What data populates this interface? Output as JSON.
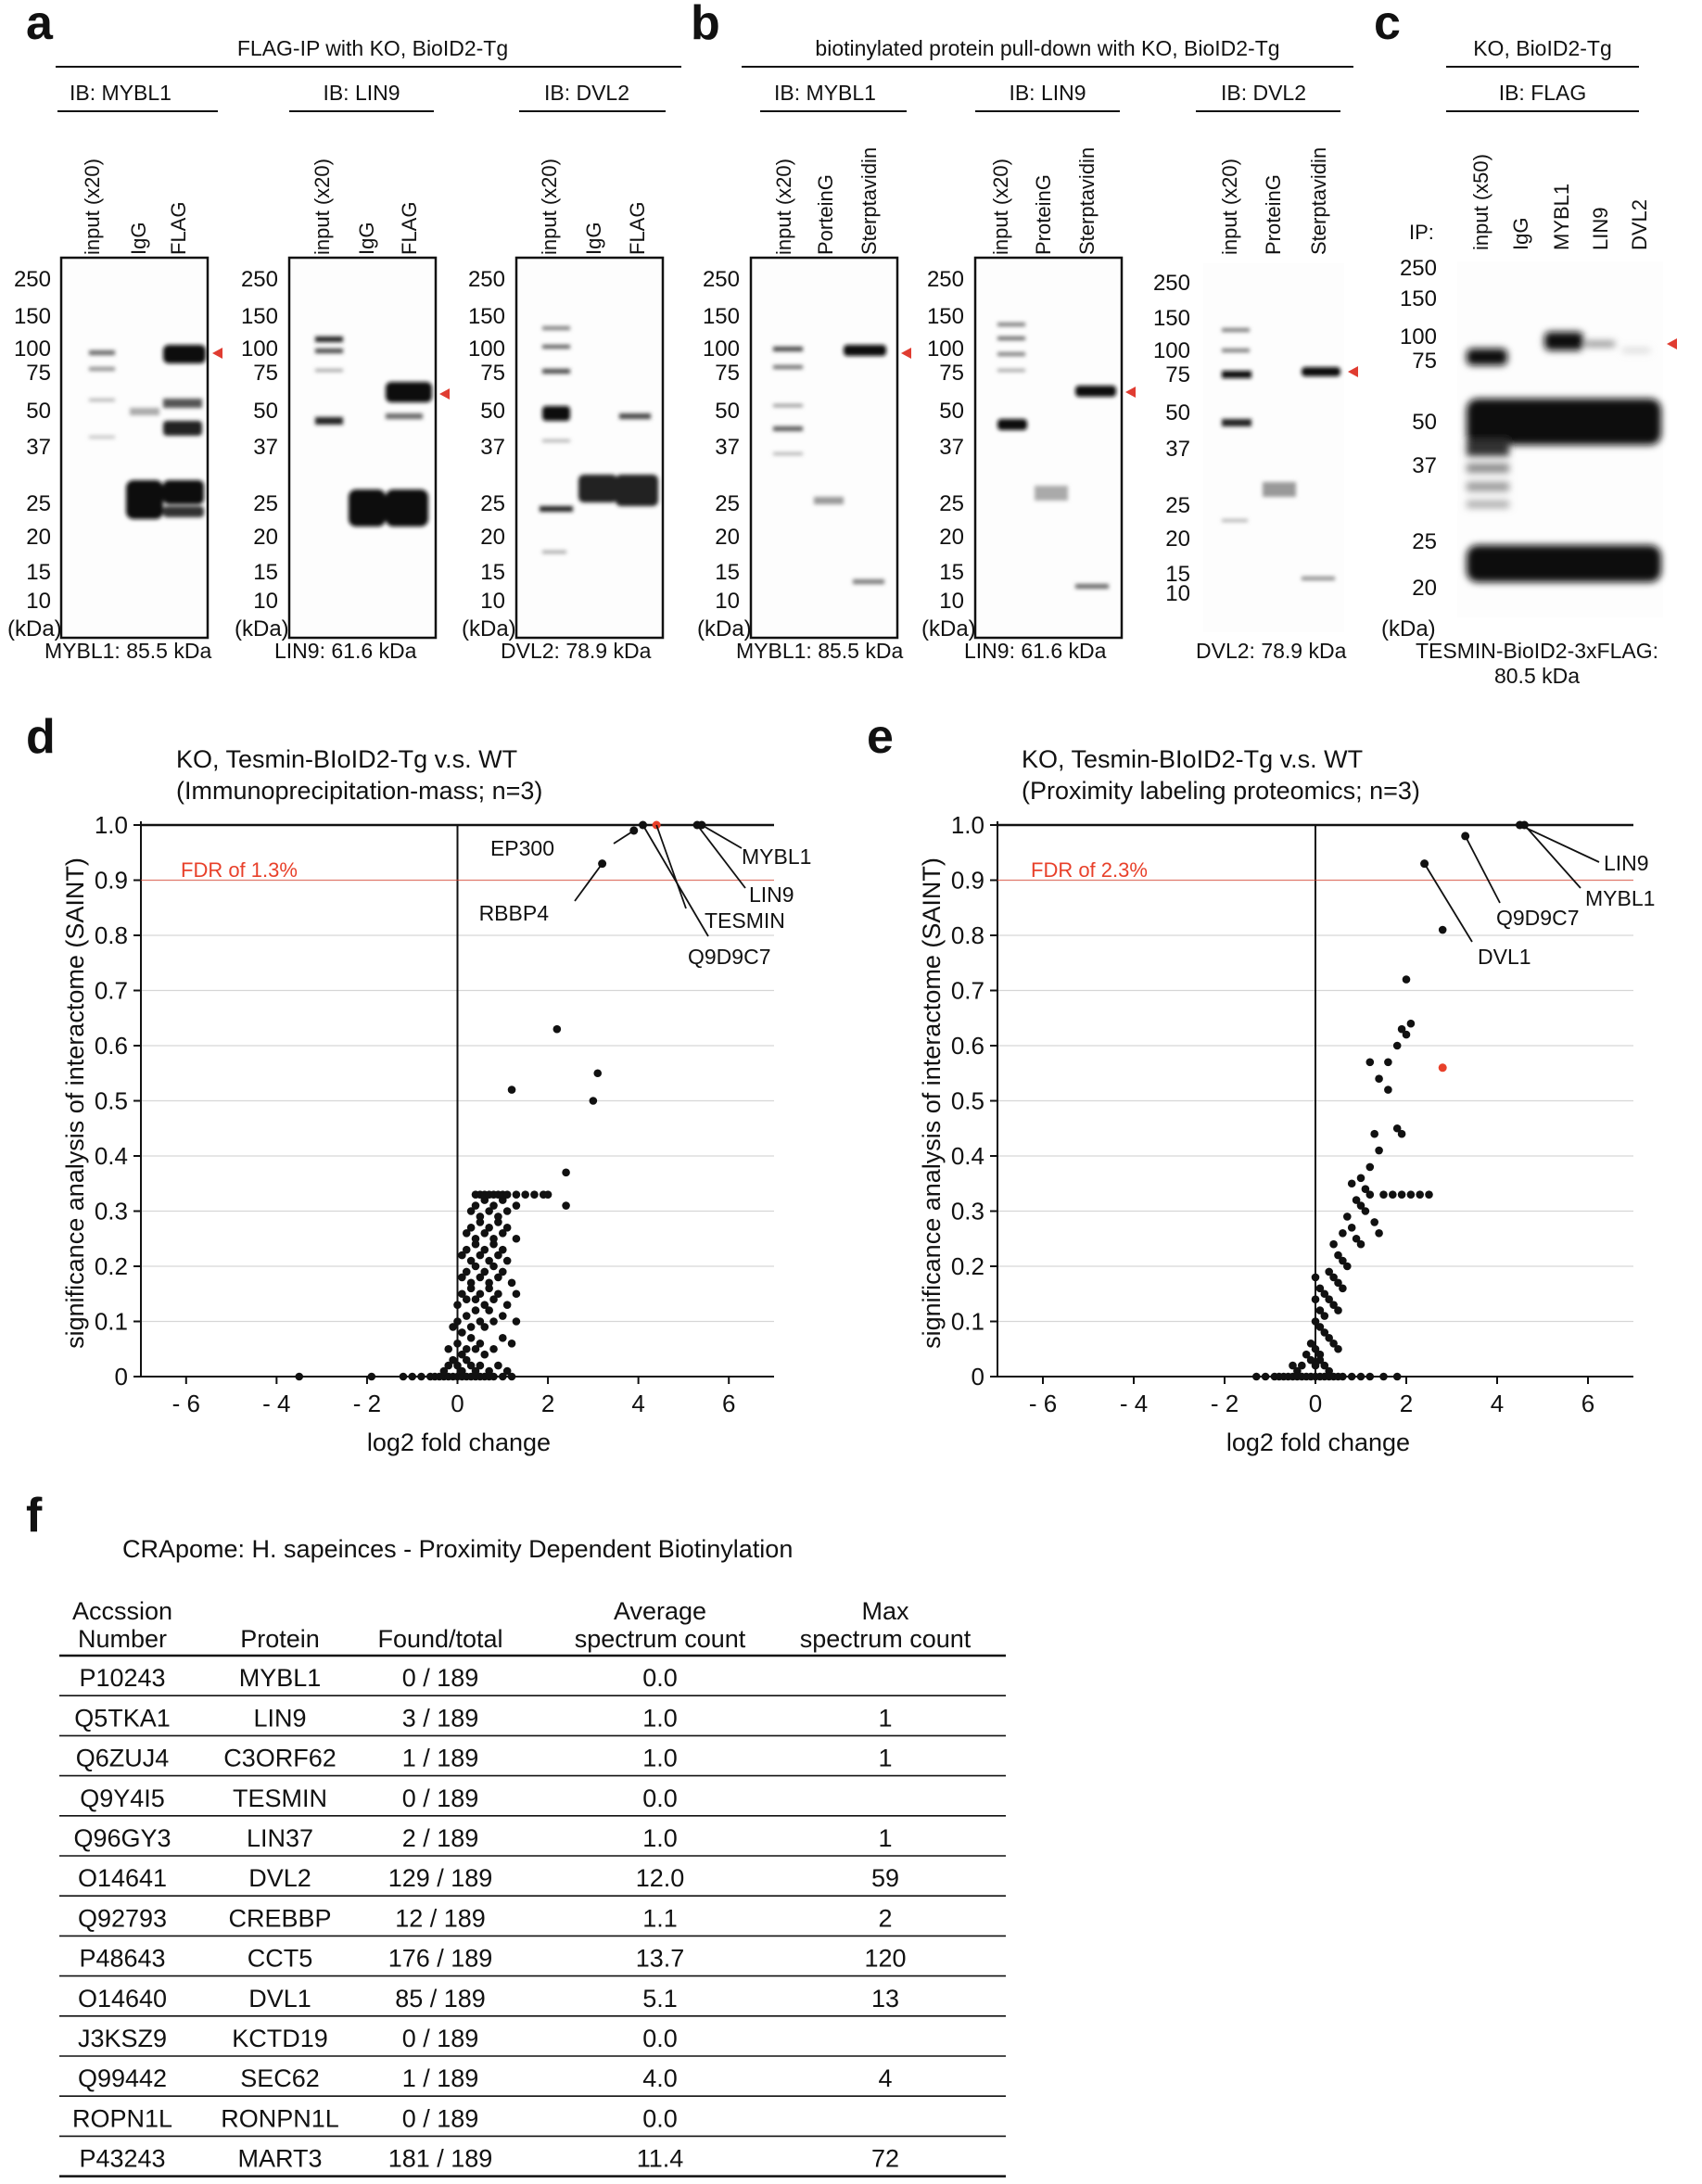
{
  "panel_labels": {
    "a": "a",
    "b": "b",
    "c": "c",
    "d": "d",
    "e": "e",
    "f": "f"
  },
  "blots": {
    "a": {
      "title": "FLAG-IP with KO, BioID2-Tg",
      "blots": [
        {
          "ib": "IB: MYBL1",
          "lanes": [
            "input (x20)",
            "IgG",
            "FLAG"
          ],
          "caption": "MYBL1: 85.5 kDa"
        },
        {
          "ib": "IB: LIN9",
          "lanes": [
            "input (x20)",
            "IgG",
            "FLAG"
          ],
          "caption": "LIN9: 61.6 kDa"
        },
        {
          "ib": "IB: DVL2",
          "lanes": [
            "input (x20)",
            "IgG",
            "FLAG"
          ],
          "caption": "DVL2: 78.9 kDa"
        }
      ]
    },
    "b": {
      "title": "biotinylated protein pull-down with KO, BioID2-Tg",
      "blots": [
        {
          "ib": "IB: MYBL1",
          "lanes": [
            "input (x20)",
            "PorteinG",
            "Sterptavidin"
          ],
          "caption": "MYBL1: 85.5 kDa"
        },
        {
          "ib": "IB: LIN9",
          "lanes": [
            "input (x20)",
            "ProteinG",
            "Sterptavidin"
          ],
          "caption": "LIN9: 61.6 kDa"
        },
        {
          "ib": "IB: DVL2",
          "lanes": [
            "input (x20)",
            "ProteinG",
            "Sterptavidin"
          ],
          "caption": "DVL2: 78.9 kDa"
        }
      ]
    },
    "c": {
      "title": "KO, BioID2-Tg",
      "ib": "IB: FLAG",
      "ip_label": "IP:",
      "lanes": [
        "input (x50)",
        "IgG",
        "MYBL1",
        "LIN9",
        "DVL2"
      ],
      "caption_line1": "TESMIN-BioID2-3xFLAG:",
      "caption_line2": "80.5 kDa"
    },
    "markers_ab": [
      "250",
      "150",
      "100",
      "75",
      "50",
      "37",
      "25",
      "20",
      "15",
      "10"
    ],
    "markers_c": [
      "250",
      "150",
      "100",
      "75",
      "50",
      "37",
      "25",
      "20"
    ],
    "kda_unit": "(kDa)"
  },
  "chart_data": [
    {
      "type": "scatter",
      "panel": "d",
      "title_line1": "KO, Tesmin-BIoID2-Tg v.s. WT",
      "title_line2": "(Immunoprecipitation-mass; n=3)",
      "xlabel": "log2 fold change",
      "ylabel": "significance analysis of interactome (SAINT)",
      "xlim": [
        -7,
        7
      ],
      "ylim": [
        0,
        1.0
      ],
      "xticks": [
        -6,
        -4,
        -2,
        0,
        2,
        4,
        6
      ],
      "xtick_labels": [
        "- 6",
        "- 4",
        "- 2",
        "0",
        "2",
        "4",
        "6"
      ],
      "yticks": [
        0,
        0.1,
        0.2,
        0.3,
        0.4,
        0.5,
        0.6,
        0.7,
        0.8,
        0.9,
        1.0
      ],
      "ytick_labels": [
        "0",
        "0.1",
        "0.2",
        "0.3",
        "0.4",
        "0.5",
        "0.6",
        "0.7",
        "0.8",
        "0.9",
        "1.0"
      ],
      "fdr_value": 0.9,
      "fdr_label": "FDR of 1.3%",
      "highlight_color": "#e8402a",
      "labeled_points": [
        {
          "name": "EP300",
          "x": 3.9,
          "y": 0.99
        },
        {
          "name": "Q9D9C7",
          "x": 4.1,
          "y": 1.0
        },
        {
          "name": "TESMIN",
          "x": 4.4,
          "y": 1.0,
          "red": true
        },
        {
          "name": "LIN9",
          "x": 5.3,
          "y": 1.0
        },
        {
          "name": "MYBL1",
          "x": 5.4,
          "y": 1.0
        },
        {
          "name": "RBBP4",
          "x": 3.2,
          "y": 0.93
        }
      ],
      "points": [
        [
          2.2,
          0.63
        ],
        [
          3.1,
          0.55
        ],
        [
          1.2,
          0.52
        ],
        [
          3.0,
          0.5
        ],
        [
          2.4,
          0.37
        ],
        [
          2.4,
          0.31
        ],
        [
          -3.5,
          0.0
        ],
        [
          -1.9,
          0.0
        ],
        [
          -1.2,
          0.0
        ],
        [
          -1.0,
          0.0
        ],
        [
          -0.8,
          0.0
        ],
        [
          -0.6,
          0.0
        ],
        [
          -0.5,
          0.0
        ],
        [
          -0.4,
          0.0
        ],
        [
          -0.3,
          0.0
        ],
        [
          -0.2,
          0.0
        ],
        [
          -0.1,
          0.0
        ],
        [
          0.0,
          0.0
        ],
        [
          0.1,
          0.0
        ],
        [
          0.2,
          0.0
        ],
        [
          0.3,
          0.0
        ],
        [
          0.4,
          0.0
        ],
        [
          0.5,
          0.0
        ],
        [
          0.6,
          0.0
        ],
        [
          0.7,
          0.0
        ],
        [
          0.8,
          0.0
        ],
        [
          1.0,
          0.0
        ],
        [
          1.2,
          0.0
        ],
        [
          -0.3,
          0.01
        ],
        [
          -0.2,
          0.02
        ],
        [
          -0.1,
          0.03
        ],
        [
          0.0,
          0.02
        ],
        [
          0.1,
          0.01
        ],
        [
          0.2,
          0.03
        ],
        [
          0.3,
          0.02
        ],
        [
          0.4,
          0.01
        ],
        [
          0.5,
          0.02
        ],
        [
          0.7,
          0.01
        ],
        [
          0.9,
          0.02
        ],
        [
          1.1,
          0.01
        ],
        [
          -0.2,
          0.05
        ],
        [
          0.0,
          0.06
        ],
        [
          0.1,
          0.04
        ],
        [
          0.2,
          0.05
        ],
        [
          0.3,
          0.07
        ],
        [
          0.4,
          0.05
        ],
        [
          0.5,
          0.06
        ],
        [
          0.6,
          0.04
        ],
        [
          0.8,
          0.05
        ],
        [
          1.0,
          0.07
        ],
        [
          1.2,
          0.06
        ],
        [
          -0.1,
          0.09
        ],
        [
          0.0,
          0.1
        ],
        [
          0.1,
          0.08
        ],
        [
          0.2,
          0.11
        ],
        [
          0.3,
          0.09
        ],
        [
          0.4,
          0.12
        ],
        [
          0.5,
          0.1
        ],
        [
          0.6,
          0.09
        ],
        [
          0.7,
          0.12
        ],
        [
          0.8,
          0.1
        ],
        [
          1.0,
          0.11
        ],
        [
          1.3,
          0.1
        ],
        [
          0.0,
          0.13
        ],
        [
          0.1,
          0.15
        ],
        [
          0.2,
          0.14
        ],
        [
          0.3,
          0.16
        ],
        [
          0.4,
          0.14
        ],
        [
          0.5,
          0.15
        ],
        [
          0.6,
          0.13
        ],
        [
          0.7,
          0.16
        ],
        [
          0.8,
          0.14
        ],
        [
          0.9,
          0.15
        ],
        [
          1.1,
          0.13
        ],
        [
          1.3,
          0.15
        ],
        [
          0.1,
          0.18
        ],
        [
          0.2,
          0.19
        ],
        [
          0.3,
          0.17
        ],
        [
          0.4,
          0.2
        ],
        [
          0.5,
          0.18
        ],
        [
          0.6,
          0.19
        ],
        [
          0.7,
          0.17
        ],
        [
          0.8,
          0.2
        ],
        [
          0.9,
          0.18
        ],
        [
          1.0,
          0.19
        ],
        [
          1.2,
          0.17
        ],
        [
          0.1,
          0.22
        ],
        [
          0.2,
          0.23
        ],
        [
          0.3,
          0.21
        ],
        [
          0.4,
          0.24
        ],
        [
          0.5,
          0.22
        ],
        [
          0.6,
          0.23
        ],
        [
          0.7,
          0.21
        ],
        [
          0.8,
          0.24
        ],
        [
          0.9,
          0.22
        ],
        [
          1.0,
          0.23
        ],
        [
          1.1,
          0.21
        ],
        [
          0.2,
          0.26
        ],
        [
          0.3,
          0.27
        ],
        [
          0.4,
          0.25
        ],
        [
          0.5,
          0.28
        ],
        [
          0.6,
          0.26
        ],
        [
          0.7,
          0.27
        ],
        [
          0.8,
          0.25
        ],
        [
          0.9,
          0.28
        ],
        [
          1.0,
          0.26
        ],
        [
          1.1,
          0.27
        ],
        [
          1.3,
          0.25
        ],
        [
          0.3,
          0.3
        ],
        [
          0.4,
          0.31
        ],
        [
          0.5,
          0.29
        ],
        [
          0.6,
          0.32
        ],
        [
          0.7,
          0.3
        ],
        [
          0.8,
          0.31
        ],
        [
          0.9,
          0.29
        ],
        [
          1.0,
          0.32
        ],
        [
          1.1,
          0.3
        ],
        [
          1.3,
          0.31
        ],
        [
          0.4,
          0.33
        ],
        [
          0.5,
          0.33
        ],
        [
          0.6,
          0.33
        ],
        [
          0.7,
          0.33
        ],
        [
          0.8,
          0.33
        ],
        [
          0.9,
          0.33
        ],
        [
          1.0,
          0.33
        ],
        [
          1.1,
          0.33
        ],
        [
          1.3,
          0.33
        ],
        [
          1.5,
          0.33
        ],
        [
          1.7,
          0.33
        ],
        [
          1.9,
          0.33
        ],
        [
          2.0,
          0.33
        ]
      ]
    },
    {
      "type": "scatter",
      "panel": "e",
      "title_line1": "KO, Tesmin-BIoID2-Tg v.s. WT",
      "title_line2": "(Proximity labeling proteomics; n=3)",
      "xlabel": "log2 fold change",
      "ylabel": "significance analysis of interactome (SAINT)",
      "xlim": [
        -7,
        7
      ],
      "ylim": [
        0,
        1.0
      ],
      "xticks": [
        -6,
        -4,
        -2,
        0,
        2,
        4,
        6
      ],
      "xtick_labels": [
        "- 6",
        "- 4",
        "- 2",
        "0",
        "2",
        "4",
        "6"
      ],
      "yticks": [
        0,
        0.1,
        0.2,
        0.3,
        0.4,
        0.5,
        0.6,
        0.7,
        0.8,
        0.9,
        1.0
      ],
      "ytick_labels": [
        "0",
        "0.1",
        "0.2",
        "0.3",
        "0.4",
        "0.5",
        "0.6",
        "0.7",
        "0.8",
        "0.9",
        "1.0"
      ],
      "fdr_value": 0.9,
      "fdr_label": "FDR of 2.3%",
      "highlight_color": "#e8402a",
      "labeled_points": [
        {
          "name": "LIN9",
          "x": 4.5,
          "y": 1.0
        },
        {
          "name": "MYBL1",
          "x": 4.6,
          "y": 1.0
        },
        {
          "name": "Q9D9C7",
          "x": 3.3,
          "y": 0.98
        },
        {
          "name": "DVL1",
          "x": 2.4,
          "y": 0.93
        }
      ],
      "red_points": [
        [
          2.8,
          0.56
        ]
      ],
      "points": [
        [
          2.8,
          0.81
        ],
        [
          2.0,
          0.72
        ],
        [
          2.1,
          0.64
        ],
        [
          1.9,
          0.63
        ],
        [
          2.0,
          0.62
        ],
        [
          1.8,
          0.6
        ],
        [
          1.6,
          0.57
        ],
        [
          1.2,
          0.57
        ],
        [
          1.4,
          0.54
        ],
        [
          1.6,
          0.52
        ],
        [
          1.8,
          0.45
        ],
        [
          1.9,
          0.44
        ],
        [
          1.3,
          0.44
        ],
        [
          1.4,
          0.41
        ],
        [
          1.2,
          0.38
        ],
        [
          1.0,
          0.36
        ],
        [
          1.1,
          0.34
        ],
        [
          1.2,
          0.33
        ],
        [
          1.5,
          0.33
        ],
        [
          1.7,
          0.33
        ],
        [
          1.9,
          0.33
        ],
        [
          2.1,
          0.33
        ],
        [
          2.3,
          0.33
        ],
        [
          2.5,
          0.33
        ],
        [
          1.3,
          0.28
        ],
        [
          1.4,
          0.26
        ],
        [
          0.8,
          0.35
        ],
        [
          0.9,
          0.32
        ],
        [
          1.0,
          0.31
        ],
        [
          1.1,
          0.3
        ],
        [
          0.7,
          0.29
        ],
        [
          0.8,
          0.27
        ],
        [
          0.6,
          0.26
        ],
        [
          0.9,
          0.25
        ],
        [
          1.0,
          0.24
        ],
        [
          0.4,
          0.24
        ],
        [
          0.5,
          0.22
        ],
        [
          0.6,
          0.21
        ],
        [
          0.7,
          0.2
        ],
        [
          0.3,
          0.19
        ],
        [
          0.4,
          0.18
        ],
        [
          0.5,
          0.17
        ],
        [
          0.6,
          0.16
        ],
        [
          0.2,
          0.15
        ],
        [
          0.3,
          0.14
        ],
        [
          0.4,
          0.13
        ],
        [
          0.5,
          0.12
        ],
        [
          0.0,
          0.18
        ],
        [
          0.1,
          0.16
        ],
        [
          0.0,
          0.14
        ],
        [
          0.1,
          0.12
        ],
        [
          0.2,
          0.11
        ],
        [
          0.0,
          0.1
        ],
        [
          0.1,
          0.09
        ],
        [
          0.2,
          0.08
        ],
        [
          0.3,
          0.07
        ],
        [
          0.4,
          0.06
        ],
        [
          0.5,
          0.05
        ],
        [
          -0.1,
          0.06
        ],
        [
          0.0,
          0.05
        ],
        [
          0.1,
          0.04
        ],
        [
          -0.2,
          0.04
        ],
        [
          -0.1,
          0.03
        ],
        [
          0.0,
          0.02
        ],
        [
          0.1,
          0.03
        ],
        [
          0.2,
          0.02
        ],
        [
          0.3,
          0.01
        ],
        [
          -0.3,
          0.02
        ],
        [
          -0.4,
          0.01
        ],
        [
          -0.5,
          0.02
        ],
        [
          -1.3,
          0.0
        ],
        [
          -1.1,
          0.0
        ],
        [
          -0.9,
          0.0
        ],
        [
          -0.8,
          0.0
        ],
        [
          -0.7,
          0.0
        ],
        [
          -0.6,
          0.0
        ],
        [
          -0.5,
          0.0
        ],
        [
          -0.4,
          0.0
        ],
        [
          -0.3,
          0.0
        ],
        [
          -0.2,
          0.0
        ],
        [
          -0.1,
          0.0
        ],
        [
          0.0,
          0.0
        ],
        [
          0.1,
          0.0
        ],
        [
          0.2,
          0.0
        ],
        [
          0.3,
          0.0
        ],
        [
          0.4,
          0.0
        ],
        [
          0.5,
          0.0
        ],
        [
          0.6,
          0.0
        ],
        [
          0.8,
          0.0
        ],
        [
          1.0,
          0.0
        ],
        [
          1.2,
          0.0
        ],
        [
          1.5,
          0.0
        ],
        [
          1.8,
          0.0
        ]
      ]
    },
    {
      "type": "table",
      "panel": "f",
      "title": "CRApome: H. sapeinces - Proximity Dependent Biotinylation",
      "headers": [
        [
          "Accssion",
          "Number"
        ],
        [
          "",
          "Protein"
        ],
        [
          "",
          "Found/total"
        ],
        [
          "Average",
          "spectrum count"
        ],
        [
          "Max",
          "spectrum count"
        ]
      ],
      "rows": [
        [
          "P10243",
          "MYBL1",
          "0 / 189",
          "0.0",
          ""
        ],
        [
          "Q5TKA1",
          "LIN9",
          "3 / 189",
          "1.0",
          "1"
        ],
        [
          "Q6ZUJ4",
          "C3ORF62",
          "1 / 189",
          "1.0",
          "1"
        ],
        [
          "Q9Y4I5",
          "TESMIN",
          "0 / 189",
          "0.0",
          ""
        ],
        [
          "Q96GY3",
          "LIN37",
          "2 / 189",
          "1.0",
          "1"
        ],
        [
          "O14641",
          "DVL2",
          "129 / 189",
          "12.0",
          "59"
        ],
        [
          "Q92793",
          "CREBBP",
          "12 / 189",
          "1.1",
          "2"
        ],
        [
          "P48643",
          "CCT5",
          "176 / 189",
          "13.7",
          "120"
        ],
        [
          "O14640",
          "DVL1",
          "85 / 189",
          "5.1",
          "13"
        ],
        [
          "J3KSZ9",
          "KCTD19",
          "0 / 189",
          "0.0",
          ""
        ],
        [
          "Q99442",
          "SEC62",
          "1 / 189",
          "4.0",
          "4"
        ],
        [
          "ROPN1L",
          "RONPN1L",
          "0 / 189",
          "0.0",
          ""
        ],
        [
          "P43243",
          "MART3",
          "181 / 189",
          "11.4",
          "72"
        ]
      ]
    }
  ]
}
